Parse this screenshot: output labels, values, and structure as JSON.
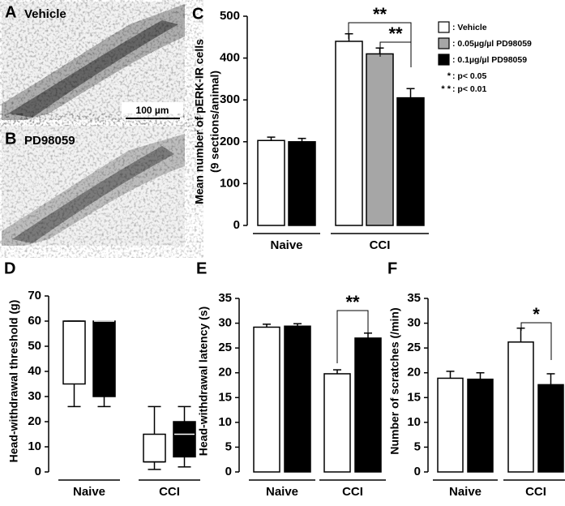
{
  "images": [
    {
      "letter": "A",
      "label": "Vehicle",
      "scale_bar": "100 µm"
    },
    {
      "letter": "B",
      "label": "PD98059"
    }
  ],
  "chart_data": [
    {
      "type": "bar",
      "panel_label": "C",
      "ylabel": [
        "Mean number of pERK-IR cells",
        "(9 sections/animal)"
      ],
      "categories": [
        "Naive",
        "CCI"
      ],
      "series": [
        {
          "name": ": Vehicle",
          "color": "#ffffff",
          "values": [
            203,
            440
          ],
          "errors": [
            8,
            18
          ]
        },
        {
          "name": ": 0.05µg/µl PD98059",
          "color": "#a6a6a6",
          "values": [
            null,
            410
          ],
          "errors": [
            null,
            14
          ]
        },
        {
          "name": ": 0.1µg/µl PD98059",
          "color": "#000000",
          "values": [
            200,
            305
          ],
          "errors": [
            8,
            22
          ]
        }
      ],
      "ylim": [
        0,
        500
      ],
      "yticks": [
        0,
        100,
        200,
        300,
        400,
        500
      ],
      "legend": "upper right",
      "significance_legend": [
        {
          "symbol": "*",
          "label": ": p< 0.05"
        },
        {
          "symbol": "* *",
          "label": ": p< 0.01"
        }
      ],
      "annotations": [
        "**",
        "**"
      ]
    },
    {
      "type": "box",
      "panel_label": "D",
      "ylabel": "Head-withdrawal threshold (g)",
      "categories": [
        "Naive",
        "CCI"
      ],
      "series": [
        {
          "color": "#ffffff",
          "boxes": [
            {
              "min": 26,
              "q1": 35,
              "median": 60,
              "q3": 60,
              "max": 60
            },
            {
              "min": 1,
              "q1": 4,
              "median": 4,
              "q3": 15,
              "max": 26
            }
          ]
        },
        {
          "color": "#000000",
          "boxes": [
            {
              "min": 26,
              "q1": 30,
              "median": 60,
              "q3": 60,
              "max": 60
            },
            {
              "min": 2,
              "q1": 6,
              "median": 15,
              "q3": 20,
              "max": 26
            }
          ]
        }
      ],
      "ylim": [
        0,
        70
      ],
      "yticks": [
        0,
        10,
        20,
        30,
        40,
        50,
        60,
        70
      ]
    },
    {
      "type": "bar",
      "panel_label": "E",
      "ylabel": "Head-withdrawal latency (s)",
      "categories": [
        "Naive",
        "CCI"
      ],
      "series": [
        {
          "color": "#ffffff",
          "values": [
            29.2,
            19.8
          ],
          "errors": [
            0.6,
            0.8
          ]
        },
        {
          "color": "#000000",
          "values": [
            29.4,
            27
          ],
          "errors": [
            0.5,
            1
          ]
        }
      ],
      "ylim": [
        0,
        35
      ],
      "yticks": [
        0,
        5,
        10,
        15,
        20,
        25,
        30,
        35
      ],
      "annotations": [
        "**"
      ]
    },
    {
      "type": "bar",
      "panel_label": "F",
      "ylabel": "Number of scratches (/min)",
      "categories": [
        "Naive",
        "CCI"
      ],
      "series": [
        {
          "color": "#ffffff",
          "values": [
            18.9,
            26.2
          ],
          "errors": [
            1.4,
            2.8
          ]
        },
        {
          "color": "#000000",
          "values": [
            18.7,
            17.6
          ],
          "errors": [
            1.3,
            2.2
          ]
        }
      ],
      "ylim": [
        0,
        35
      ],
      "yticks": [
        0,
        5,
        10,
        15,
        20,
        25,
        30,
        35
      ],
      "annotations": [
        "*"
      ]
    }
  ]
}
